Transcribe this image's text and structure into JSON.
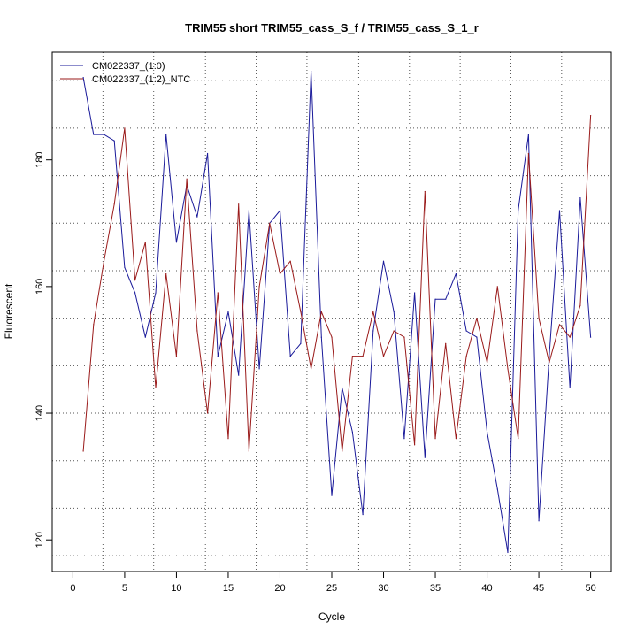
{
  "chart_data": {
    "type": "line",
    "title": "TRIM55 short TRIM55_cass_S_f / TRIM55_cass_S_1_r",
    "xlabel": "Cycle",
    "ylabel": "Fluorescent",
    "xlim": [
      -2,
      52
    ],
    "ylim": [
      115,
      197
    ],
    "x_ticks": [
      0,
      5,
      10,
      15,
      20,
      25,
      30,
      35,
      40,
      45,
      50
    ],
    "y_ticks": [
      120,
      140,
      160,
      180
    ],
    "x_ticks_labels": [
      "0",
      "5",
      "10",
      "15",
      "20",
      "25",
      "30",
      "35",
      "40",
      "45",
      "50"
    ],
    "y_ticks_labels": [
      "120",
      "140",
      "160",
      "180"
    ],
    "grid_x": [
      2.9,
      7.8,
      12.8,
      17.7,
      22.6,
      27.6,
      32.5,
      37.4,
      42.3,
      47.2
    ],
    "grid_y": [
      117.5,
      125,
      132.5,
      140,
      147.5,
      155,
      162.5,
      170,
      177.5,
      185,
      192.5
    ],
    "legend_position": "top-left",
    "x": [
      1,
      2,
      3,
      4,
      5,
      6,
      7,
      8,
      9,
      10,
      11,
      12,
      13,
      14,
      15,
      16,
      17,
      18,
      19,
      20,
      21,
      22,
      23,
      24,
      25,
      26,
      27,
      28,
      29,
      30,
      31,
      32,
      33,
      34,
      35,
      36,
      37,
      38,
      39,
      40,
      41,
      42,
      43,
      44,
      45,
      46,
      47,
      48,
      49,
      50
    ],
    "series": [
      {
        "name": "CM022337_(1:0)",
        "color": "#1a1a9a",
        "values": [
          193,
          184,
          184,
          183,
          163,
          159,
          152,
          159,
          184,
          167,
          176,
          171,
          181,
          149,
          156,
          146,
          172,
          147,
          170,
          172,
          149,
          151,
          194,
          152,
          127,
          144,
          137,
          124,
          153,
          164,
          156,
          136,
          159,
          133,
          158,
          158,
          162,
          153,
          152,
          137,
          128,
          118,
          172,
          184,
          123,
          149,
          172,
          144,
          174,
          152
        ]
      },
      {
        "name": "CM022337_(1:2)_NTC",
        "color": "#9a1a1a",
        "values": [
          134,
          154,
          164,
          173,
          185,
          161,
          167,
          144,
          162,
          149,
          177,
          153,
          140,
          159,
          136,
          173,
          134,
          160,
          170,
          162,
          164,
          156,
          147,
          156,
          152,
          134,
          149,
          149,
          156,
          149,
          153,
          152,
          135,
          175,
          136,
          151,
          136,
          149,
          155,
          148,
          160,
          147,
          136,
          181,
          155,
          148,
          154,
          152,
          157,
          187
        ]
      }
    ]
  }
}
